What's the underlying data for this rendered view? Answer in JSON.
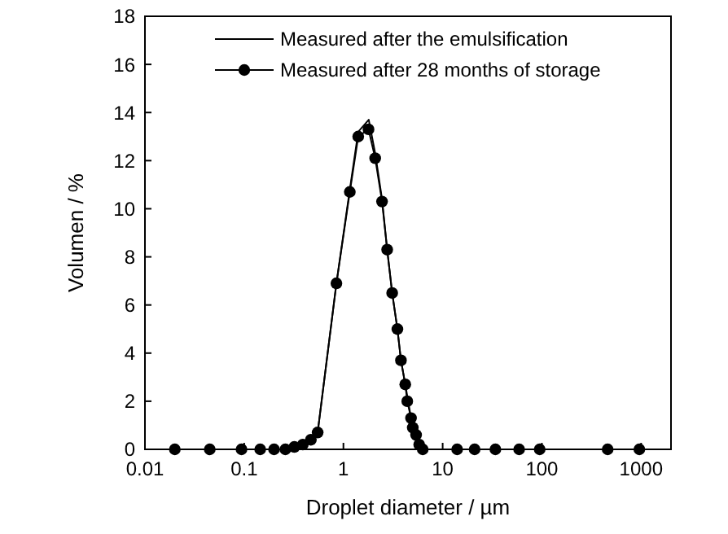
{
  "chart_data": {
    "type": "line",
    "xlabel": "Droplet diameter / µm",
    "ylabel": "Volumen / %",
    "log": "x",
    "xlim": [
      0.01,
      2000
    ],
    "xticks": [
      0.01,
      0.1,
      1,
      10,
      100,
      1000
    ],
    "ylim": [
      0,
      18
    ],
    "yticks": [
      0,
      2,
      4,
      6,
      8,
      10,
      12,
      14,
      16,
      18
    ],
    "grid": false,
    "legend": "top right",
    "series": [
      {
        "name": "Measured after the emulsification",
        "color": "#000000",
        "x": [
          0.02,
          0.2,
          0.39,
          0.55,
          0.85,
          1.16,
          1.41,
          1.8,
          2.09,
          2.45,
          2.76,
          3.1,
          3.5,
          3.8,
          4.2,
          4.8,
          5.4,
          6.3,
          14,
          95,
          960
        ],
        "values": [
          0,
          0,
          0,
          0.7,
          6.9,
          10.8,
          13.2,
          13.7,
          12.3,
          10.4,
          8.3,
          6.5,
          5.0,
          3.7,
          2.7,
          1.3,
          0.6,
          0,
          0,
          0,
          0
        ]
      },
      {
        "name": "Measured after 28 months of storage",
        "color": "#000000",
        "marker": "circle",
        "x": [
          0.02,
          0.045,
          0.094,
          0.145,
          0.2,
          0.26,
          0.32,
          0.39,
          0.47,
          0.55,
          0.85,
          1.16,
          1.41,
          1.79,
          2.09,
          2.45,
          2.76,
          3.1,
          3.5,
          3.8,
          4.2,
          4.4,
          4.8,
          5.0,
          5.4,
          5.8,
          6.3,
          14,
          21,
          34,
          59,
          95,
          460,
          960
        ],
        "values": [
          0,
          0,
          0,
          0,
          0,
          0,
          0.1,
          0.2,
          0.4,
          0.7,
          6.9,
          10.7,
          13.0,
          13.3,
          12.1,
          10.3,
          8.3,
          6.5,
          5.0,
          3.7,
          2.7,
          2.0,
          1.3,
          0.9,
          0.6,
          0.2,
          0,
          0,
          0,
          0,
          0,
          0,
          0,
          0
        ]
      }
    ]
  }
}
